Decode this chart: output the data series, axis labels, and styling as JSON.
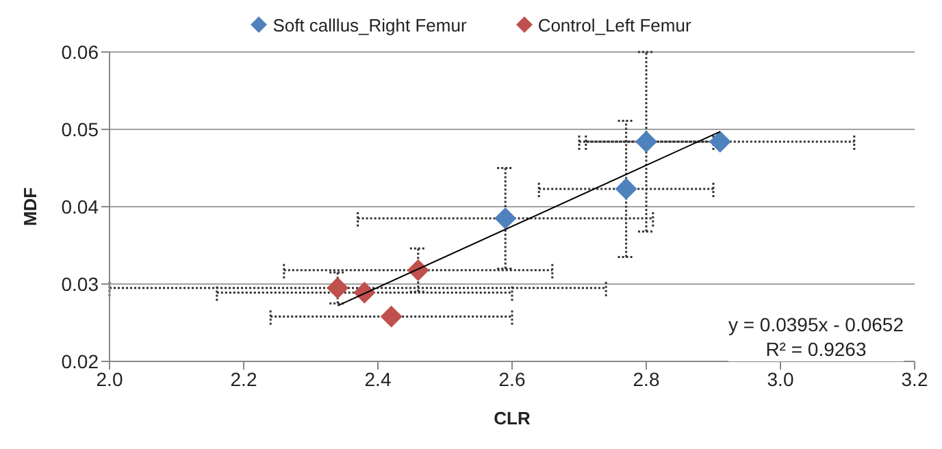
{
  "chart_data": {
    "type": "scatter",
    "xlabel": "CLR",
    "ylabel": "MDF",
    "xlim": [
      2.0,
      3.2
    ],
    "ylim": [
      0.02,
      0.06
    ],
    "xticks": [
      {
        "value": 2,
        "label": "2.0"
      },
      2.2,
      2.4,
      2.6,
      2.8,
      {
        "value": 3,
        "label": "3.0"
      },
      3.2
    ],
    "yticks": [
      0.02,
      0.03,
      0.04,
      0.05,
      0.06
    ],
    "grid": "y",
    "legend": "top",
    "marker": "diamond",
    "annotations": [
      "y = 0.0395x - 0.0652",
      "R² = 0.9263"
    ],
    "series": [
      {
        "name": "Soft calllus_Right Femur",
        "color": "#4f81bd",
        "x": [
          2.59,
          2.77,
          2.8,
          2.91
        ],
        "values": [
          0.0385,
          0.0423,
          0.0484,
          0.0484
        ],
        "errors": [
          0.0065,
          0.0088,
          0.0116,
          null
        ],
        "xerrors": [
          0.22,
          0.13,
          0.1,
          0.2
        ]
      },
      {
        "name": "Control_Left Femur",
        "color": "#c0504d",
        "x": [
          2.34,
          2.38,
          2.42,
          2.46
        ],
        "values": [
          0.0295,
          0.0289,
          0.0258,
          0.0318
        ],
        "errors": [
          0.002,
          null,
          null,
          0.0028
        ],
        "xerrors": [
          [
            2.0,
            2.74
          ],
          0.22,
          0.18,
          0.2
        ]
      },
      {
        "type": "line",
        "color": "#000000",
        "x": [
          2.34,
          2.91
        ],
        "values": [
          0.0272,
          0.0497
        ],
        "marker": "none"
      }
    ]
  }
}
